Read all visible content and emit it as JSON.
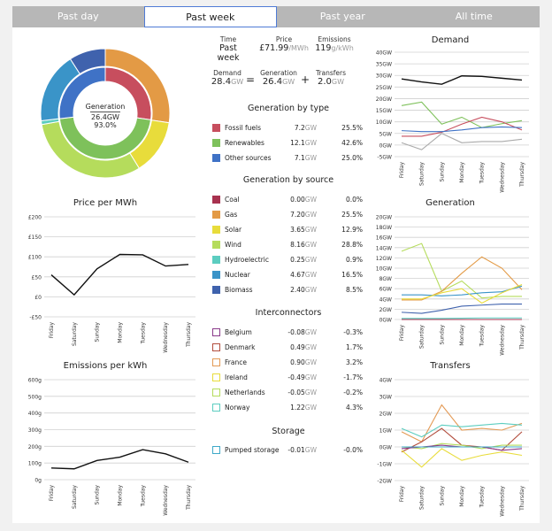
{
  "tabs": [
    {
      "label": "Past day",
      "active": false
    },
    {
      "label": "Past week",
      "active": true
    },
    {
      "label": "Past year",
      "active": false
    },
    {
      "label": "All time",
      "active": false
    }
  ],
  "donut": {
    "center_title": "Generation",
    "center_value": "26.4",
    "center_unit": "GW",
    "center_pct": "93.0%",
    "outer": [
      {
        "name": "Gas",
        "value": 7.2,
        "color": "#e39a45"
      },
      {
        "name": "Solar",
        "value": 3.65,
        "color": "#e8dc3b"
      },
      {
        "name": "Wind",
        "value": 8.16,
        "color": "#b5dc5c"
      },
      {
        "name": "Hydroelectric",
        "value": 0.25,
        "color": "#5ccdc0"
      },
      {
        "name": "Nuclear",
        "value": 4.67,
        "color": "#3a94c8"
      },
      {
        "name": "Biomass",
        "value": 2.4,
        "color": "#3f62ad"
      },
      {
        "name": "Coal",
        "value": 0.0,
        "color": "#a8324f"
      }
    ],
    "inner": [
      {
        "name": "Fossil fuels",
        "value": 7.2,
        "color": "#c74e5e"
      },
      {
        "name": "Renewables",
        "value": 12.1,
        "color": "#7ec15b"
      },
      {
        "name": "Other sources",
        "value": 7.1,
        "color": "#3f72c6"
      }
    ]
  },
  "stats": {
    "time_label": "Time",
    "time_value": "Past week",
    "price_label": "Price",
    "price_value": "£71.99",
    "price_unit": "/MWh",
    "emissions_label": "Emissions",
    "emissions_value": "119",
    "emissions_unit": "g/kWh",
    "demand_label": "Demand",
    "demand_value": "28.4",
    "demand_unit": "GW",
    "equals": "=",
    "generation_label": "Generation",
    "generation_value": "26.4",
    "generation_unit": "GW",
    "plus": "+",
    "transfers_label": "Transfers",
    "transfers_value": "2.0",
    "transfers_unit": "GW"
  },
  "by_type": {
    "title": "Generation by type",
    "rows": [
      {
        "label": "Fossil fuels",
        "value": "7.2",
        "unit": "GW",
        "pct": "25.5%",
        "color": "#c74e5e"
      },
      {
        "label": "Renewables",
        "value": "12.1",
        "unit": "GW",
        "pct": "42.6%",
        "color": "#7ec15b"
      },
      {
        "label": "Other sources",
        "value": "7.1",
        "unit": "GW",
        "pct": "25.0%",
        "color": "#3f72c6"
      }
    ]
  },
  "by_source": {
    "title": "Generation by source",
    "rows": [
      {
        "label": "Coal",
        "value": "0.00",
        "unit": "GW",
        "pct": "0.0%",
        "color": "#a8324f"
      },
      {
        "label": "Gas",
        "value": "7.20",
        "unit": "GW",
        "pct": "25.5%",
        "color": "#e39a45"
      },
      {
        "label": "Solar",
        "value": "3.65",
        "unit": "GW",
        "pct": "12.9%",
        "color": "#e8dc3b"
      },
      {
        "label": "Wind",
        "value": "8.16",
        "unit": "GW",
        "pct": "28.8%",
        "color": "#b5dc5c"
      },
      {
        "label": "Hydroelectric",
        "value": "0.25",
        "unit": "GW",
        "pct": "0.9%",
        "color": "#5ccdc0"
      },
      {
        "label": "Nuclear",
        "value": "4.67",
        "unit": "GW",
        "pct": "16.5%",
        "color": "#3a94c8"
      },
      {
        "label": "Biomass",
        "value": "2.40",
        "unit": "GW",
        "pct": "8.5%",
        "color": "#3f62ad"
      }
    ]
  },
  "interconnectors": {
    "title": "Interconnectors",
    "rows": [
      {
        "label": "Belgium",
        "value": "-0.08",
        "unit": "GW",
        "pct": "-0.3%",
        "color": "#8a3a8a"
      },
      {
        "label": "Denmark",
        "value": "0.49",
        "unit": "GW",
        "pct": "1.7%",
        "color": "#b24c3c"
      },
      {
        "label": "France",
        "value": "0.90",
        "unit": "GW",
        "pct": "3.2%",
        "color": "#e39a55"
      },
      {
        "label": "Ireland",
        "value": "-0.49",
        "unit": "GW",
        "pct": "-1.7%",
        "color": "#e8dc3b"
      },
      {
        "label": "Netherlands",
        "value": "-0.05",
        "unit": "GW",
        "pct": "-0.2%",
        "color": "#b5dc5c"
      },
      {
        "label": "Norway",
        "value": "1.22",
        "unit": "GW",
        "pct": "4.3%",
        "color": "#5ccdc0"
      }
    ]
  },
  "storage": {
    "title": "Storage",
    "rows": [
      {
        "label": "Pumped storage",
        "value": "-0.01",
        "unit": "GW",
        "pct": "-0.0%",
        "color": "#3fa9c8"
      }
    ]
  },
  "chart_data": [
    {
      "type": "line",
      "id": "price",
      "title": "Price per MWh",
      "categories": [
        "Friday",
        "Saturday",
        "Sunday",
        "Monday",
        "Tuesday",
        "Wednesday",
        "Thursday"
      ],
      "yticks": [
        -50,
        0,
        50,
        100,
        150,
        200
      ],
      "ytick_labels": [
        "-£50",
        "£0",
        "£50",
        "£100",
        "£150",
        "£200"
      ],
      "ylim": [
        -50,
        200
      ],
      "series": [
        {
          "values": [
            55,
            5,
            70,
            106,
            105,
            77,
            81
          ],
          "color": "#111"
        }
      ]
    },
    {
      "type": "line",
      "id": "emissions",
      "title": "Emissions per kWh",
      "categories": [
        "Friday",
        "Saturday",
        "Sunday",
        "Monday",
        "Tuesday",
        "Wednesday",
        "Thursday"
      ],
      "yticks": [
        0,
        100,
        200,
        300,
        400,
        500,
        600
      ],
      "ytick_labels": [
        "0g",
        "100g",
        "200g",
        "300g",
        "400g",
        "500g",
        "600g"
      ],
      "ylim": [
        0,
        600
      ],
      "series": [
        {
          "values": [
            70,
            65,
            115,
            135,
            180,
            155,
            105
          ],
          "color": "#111"
        }
      ]
    },
    {
      "type": "line",
      "id": "demand",
      "title": "Demand",
      "categories": [
        "Friday",
        "Saturday",
        "Sunday",
        "Monday",
        "Tuesday",
        "Wednesday",
        "Thursday"
      ],
      "yticks": [
        -5,
        0,
        5,
        10,
        15,
        20,
        25,
        30,
        35,
        40
      ],
      "ytick_labels": [
        "-5GW",
        "0GW",
        "5GW",
        "10GW",
        "15GW",
        "20GW",
        "25GW",
        "30GW",
        "35GW",
        "40GW"
      ],
      "ylim": [
        -5,
        40
      ],
      "series": [
        {
          "values": [
            28.5,
            27.2,
            26.2,
            29.8,
            29.6,
            28.8,
            28.0
          ],
          "color": "#111"
        },
        {
          "values": [
            17,
            18.5,
            9,
            12,
            7.5,
            9.2,
            10.5
          ],
          "color": "#7ec15b"
        },
        {
          "values": [
            3.8,
            3.8,
            5.5,
            9,
            12,
            10,
            6.5
          ],
          "color": "#c74e5e"
        },
        {
          "values": [
            6.2,
            5.8,
            5.8,
            6.5,
            7.5,
            7.8,
            7.5
          ],
          "color": "#3f72c6"
        },
        {
          "values": [
            1,
            -2,
            5,
            1,
            1.5,
            1.5,
            2.5
          ],
          "color": "#aaaaaa"
        }
      ]
    },
    {
      "type": "line",
      "id": "generation",
      "title": "Generation",
      "categories": [
        "Friday",
        "Saturday",
        "Sunday",
        "Monday",
        "Tuesday",
        "Wednesday",
        "Thursday"
      ],
      "yticks": [
        0,
        2,
        4,
        6,
        8,
        10,
        12,
        14,
        16,
        18,
        20
      ],
      "ytick_labels": [
        "0GW",
        "2GW",
        "4GW",
        "6GW",
        "8GW",
        "10GW",
        "12GW",
        "14GW",
        "16GW",
        "18GW",
        "20GW"
      ],
      "ylim": [
        0,
        20
      ],
      "series": [
        {
          "values": [
            13.3,
            14.8,
            5.5,
            7.5,
            4.2,
            4.5,
            4.5
          ],
          "color": "#b5dc5c"
        },
        {
          "values": [
            3.8,
            3.8,
            5.5,
            9,
            12.2,
            10,
            5.8
          ],
          "color": "#e39a45"
        },
        {
          "values": [
            4.8,
            4.8,
            4.6,
            4.8,
            5.2,
            5.4,
            6.5
          ],
          "color": "#3a94c8"
        },
        {
          "values": [
            4,
            4,
            5.2,
            6,
            3.2,
            5.2,
            6.8
          ],
          "color": "#e8dc3b"
        },
        {
          "values": [
            1.4,
            1.2,
            1.8,
            2.6,
            2.8,
            3,
            3
          ],
          "color": "#3f62ad"
        },
        {
          "values": [
            0.2,
            0.2,
            0.2,
            0.25,
            0.3,
            0.3,
            0.3
          ],
          "color": "#5ccdc0"
        },
        {
          "values": [
            0,
            0,
            0,
            0,
            0,
            0,
            0
          ],
          "color": "#a8324f"
        }
      ]
    },
    {
      "type": "line",
      "id": "transfers",
      "title": "Transfers",
      "categories": [
        "Friday",
        "Saturday",
        "Sunday",
        "Monday",
        "Tuesday",
        "Wednesday",
        "Thursday"
      ],
      "yticks": [
        -2,
        -1,
        0,
        1,
        2,
        3,
        4
      ],
      "ytick_labels": [
        "-2GW",
        "-1GW",
        "0GW",
        "1GW",
        "2GW",
        "3GW",
        "4GW"
      ],
      "ylim": [
        -2,
        4
      ],
      "series": [
        {
          "values": [
            0.9,
            0.3,
            2.5,
            1.0,
            1.1,
            1.0,
            1.4
          ],
          "color": "#e39a55"
        },
        {
          "values": [
            1.1,
            0.6,
            1.3,
            1.2,
            1.3,
            1.4,
            1.3
          ],
          "color": "#5ccdc0"
        },
        {
          "values": [
            -0.3,
            0.3,
            1.1,
            0.1,
            0.0,
            -0.2,
            0.9
          ],
          "color": "#b24c3c"
        },
        {
          "values": [
            -0.2,
            -1.2,
            -0.1,
            -0.8,
            -0.5,
            -0.3,
            -0.5
          ],
          "color": "#e8dc3b"
        },
        {
          "values": [
            0.0,
            -0.1,
            0.2,
            0.1,
            -0.1,
            0.1,
            0.1
          ],
          "color": "#b5dc5c"
        },
        {
          "values": [
            -0.1,
            0.0,
            0.1,
            0.0,
            0.0,
            -0.2,
            -0.1
          ],
          "color": "#8a3a8a"
        },
        {
          "values": [
            0.0,
            0.0,
            0.0,
            0.0,
            0.0,
            0.0,
            0.0
          ],
          "color": "#3fa9c8"
        }
      ]
    }
  ]
}
